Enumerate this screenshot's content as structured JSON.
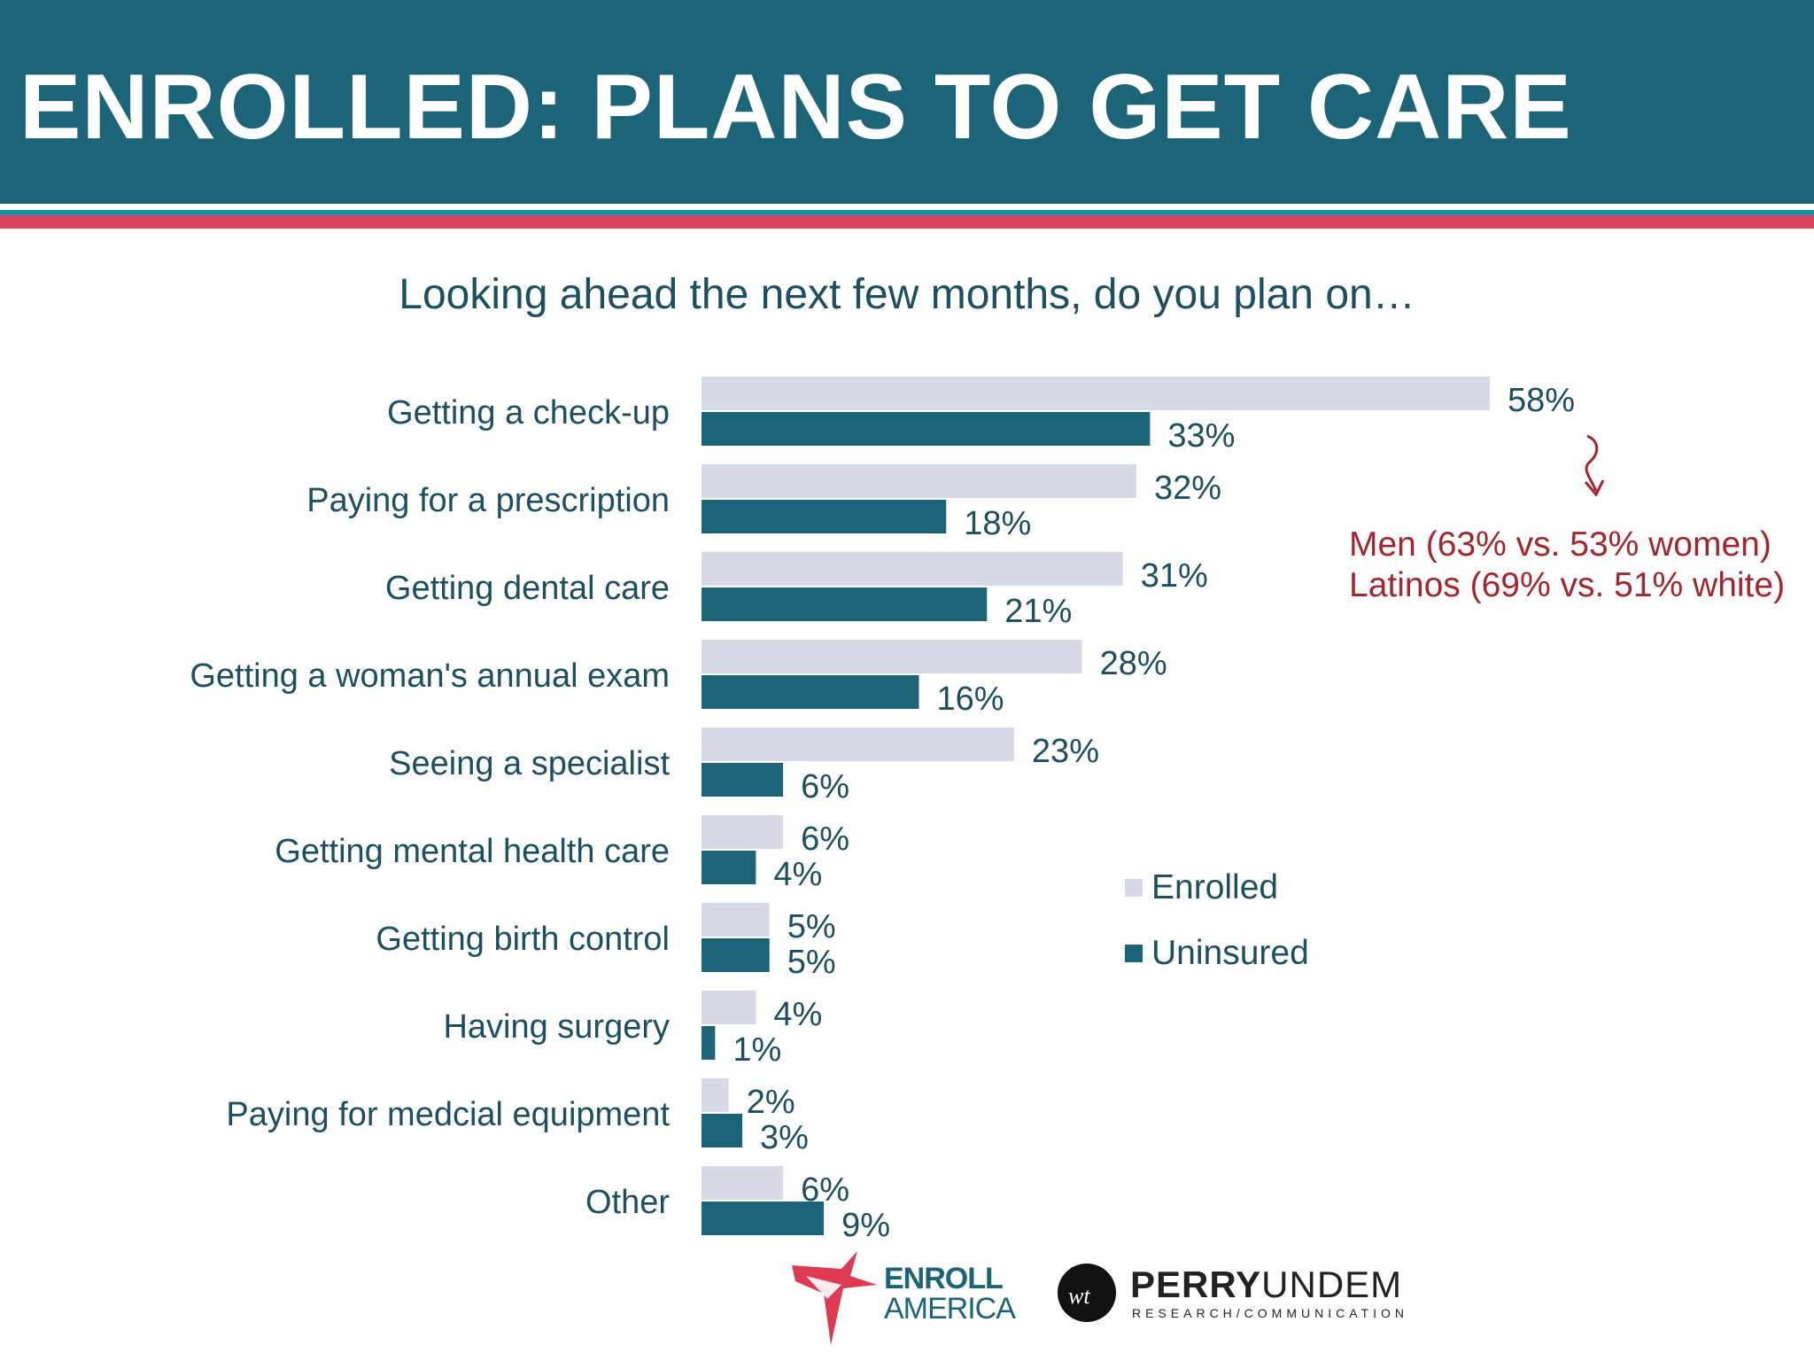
{
  "header": {
    "title": "ENROLLED: PLANS TO GET CARE"
  },
  "colors": {
    "header_bg": "#1c6478",
    "stripe_blue": "#1d8aa6",
    "stripe_red": "#d9435f",
    "enrolled": "#d8d9e6",
    "uninsured": "#1c6478",
    "annotation": "#a3262e",
    "text": "#1c4f60"
  },
  "chart_data": {
    "type": "bar",
    "orientation": "horizontal",
    "title": "Looking ahead the next few months, do you plan on…",
    "categories": [
      "Getting a check-up",
      "Paying for a prescription",
      "Getting dental care",
      "Getting a woman's annual exam",
      "Seeing a specialist",
      "Getting mental health care",
      "Getting birth control",
      "Having surgery",
      "Paying for medcial equipment",
      "Other"
    ],
    "series": [
      {
        "name": "Enrolled",
        "values": [
          58,
          32,
          31,
          28,
          23,
          6,
          5,
          4,
          2,
          6
        ]
      },
      {
        "name": "Uninsured",
        "values": [
          33,
          18,
          21,
          16,
          6,
          4,
          5,
          1,
          3,
          9
        ]
      }
    ],
    "value_suffix": "%",
    "xlim": [
      0,
      58
    ],
    "grid": false,
    "legend_position": "right"
  },
  "annotation": {
    "line1": "Men (63% vs. 53% women)",
    "line2": "Latinos (69% vs. 51% white)"
  },
  "logos": {
    "enroll_line1": "ENROLL",
    "enroll_line2": "AMERICA",
    "perry_bold": "PERRY",
    "perry_light": "UNDEM",
    "perry_sub": "RESEARCH/COMMUNICATION"
  }
}
